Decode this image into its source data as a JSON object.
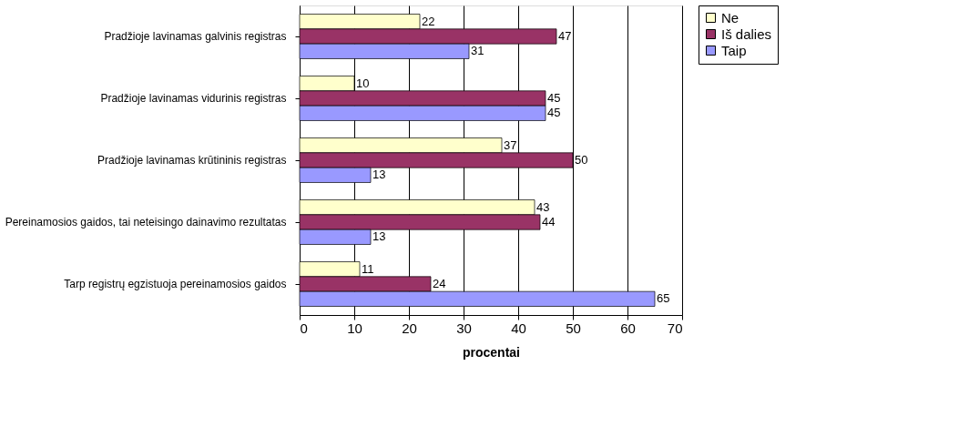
{
  "chart_data": {
    "type": "bar",
    "orientation": "horizontal",
    "xlabel": "procentai",
    "categories": [
      "Pradžioje lavinamas galvinis registras",
      "Pradžioje lavinamas vidurinis registras",
      "Pradžioje lavinamas krūtininis registras",
      "Pereinamosios gaidos, tai neteisingo dainavimo rezultatas",
      "Tarp registrų egzistuoja pereinamosios gaidos"
    ],
    "series": [
      {
        "name": "Ne",
        "color": "#ffffcc",
        "values": [
          22,
          10,
          37,
          43,
          11
        ]
      },
      {
        "name": "Iš dalies",
        "color": "#993366",
        "values": [
          47,
          45,
          50,
          44,
          24
        ]
      },
      {
        "name": "Taip",
        "color": "#9999ff",
        "values": [
          31,
          45,
          13,
          13,
          65
        ]
      }
    ],
    "xlim": [
      0,
      70
    ],
    "xticks": [
      0,
      10,
      20,
      30,
      40,
      50,
      60,
      70
    ],
    "grid": "x",
    "legend": "right",
    "data_labels": true
  }
}
